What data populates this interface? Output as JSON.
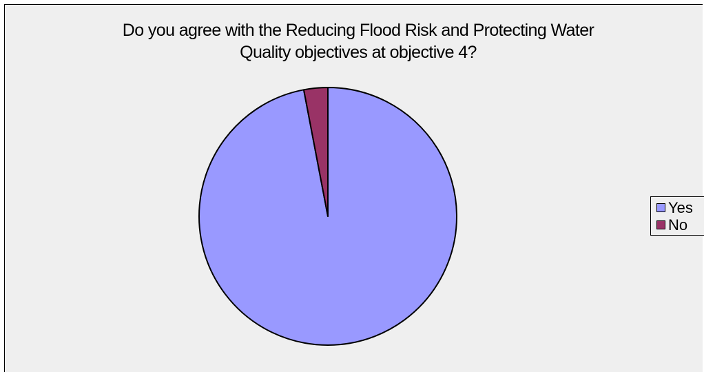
{
  "chart_data": {
    "type": "pie",
    "title": "Do you agree with the Reducing Flood Risk and Protecting Water Quality objectives at objective 4?",
    "title_lines": [
      "Do you agree with the Reducing Flood Risk and Protecting Water",
      "Quality objectives at objective 4?"
    ],
    "categories": [
      "Yes",
      "No"
    ],
    "values": [
      97,
      3
    ],
    "colors": [
      "#9999ff",
      "#993366"
    ],
    "legend": "right"
  }
}
